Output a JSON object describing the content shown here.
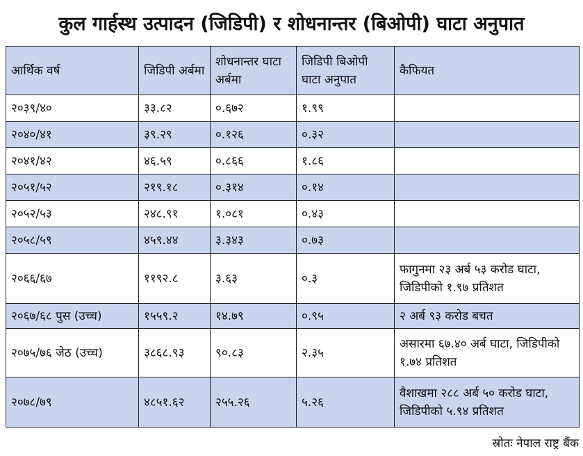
{
  "title": "कुल गार्हस्थ उत्पादन (जिडिपी) र शोधनान्तर (बिओपी) घाटा अनुपात",
  "headers": [
    "आर्थिक वर्ष",
    "जिडिपी अर्बमा",
    "शोधनान्तर घाटा अर्बमा",
    "जिडिपी बिओपी घाटा अनुपात",
    "कैफियत"
  ],
  "rows": [
    {
      "year": "२०३९/४०",
      "gdp": "३३.८२",
      "bop": "०.६७२",
      "ratio": "१.९९",
      "remark": ""
    },
    {
      "year": "२०४०/४१",
      "gdp": "३९.२९",
      "bop": "०.१२६",
      "ratio": "०.३२",
      "remark": ""
    },
    {
      "year": "२०४१/४२",
      "gdp": "४६.५९",
      "bop": "०.८६६",
      "ratio": "१.८६",
      "remark": ""
    },
    {
      "year": "२०५१/५२",
      "gdp": "२१९.१८",
      "bop": "०.३१४",
      "ratio": "०.१४",
      "remark": ""
    },
    {
      "year": "२०५२/५३",
      "gdp": "२४८.९१",
      "bop": "१.०८१",
      "ratio": "०.४३",
      "remark": ""
    },
    {
      "year": "२०५८/५९",
      "gdp": "४५९.४४",
      "bop": "३.३४३",
      "ratio": "०.७३",
      "remark": ""
    },
    {
      "year": "२०६६/६७",
      "gdp": "११९२.८",
      "bop": "३.६३",
      "ratio": "०.३",
      "remark": "फागुनमा २३ अर्ब ५३ करोड घाटा, जिडिपीको १.९७ प्रतिशत"
    },
    {
      "year": "२०६७/६८ पुस (उच्च)",
      "gdp": "१५५९.२",
      "bop": "१४.७९",
      "ratio": "०.९५",
      "remark": "२ अर्ब ९३ करोड बचत"
    },
    {
      "year": "२०७५/७६ जेठ (उच्च)",
      "gdp": "३८६८.९३",
      "bop": "९०.८३",
      "ratio": "२.३५",
      "remark": "असारमा ६७.४० अर्ब घाटा, जिडिपीको १.७४ प्रतिशत"
    },
    {
      "year": "२०७८/७९",
      "gdp": "४८५१.६२",
      "bop": "२५५.२६",
      "ratio": "५.२६",
      "remark": "वैशाखमा २८८ अर्ब ५० करोड घाटा, जिडिपीको ५.९४ प्रतिशत"
    }
  ],
  "source": "स्रोतः नेपाल राष्ट्र बैंक",
  "colors": {
    "header_bg": "#c9d5ee",
    "row_shade": "#c9d5ee",
    "border": "#222222"
  }
}
